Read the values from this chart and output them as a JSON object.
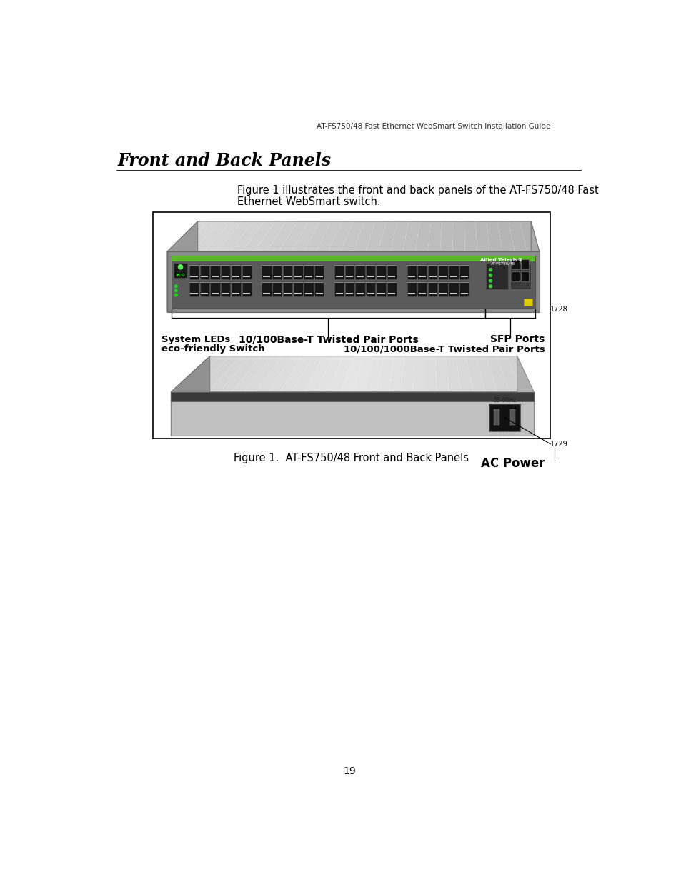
{
  "header_text": "AT-FS750/48 Fast Ethernet WebSmart Switch Installation Guide",
  "title": "Front and Back Panels",
  "subtitle_line1": "Figure 1 illustrates the front and back panels of the AT-FS750/48 Fast",
  "subtitle_line2": "Ethernet WebSmart switch.",
  "figure_caption": "Figure 1.  AT-FS750/48 Front and Back Panels",
  "label_system_leds": "System LEDs",
  "label_eco": "eco-friendly Switch",
  "label_twisted_pair": "10/100Base-T Twisted Pair Ports",
  "label_sfp": "SFP Ports",
  "label_gigabit": "10/100/1000Base-T Twisted Pair Ports",
  "label_ac_power": "AC Power",
  "page_number": "19",
  "bg_color": "#ffffff",
  "box_border_color": "#000000",
  "green_bar_color": "#5ab82a",
  "port_color": "#1a1a1a"
}
